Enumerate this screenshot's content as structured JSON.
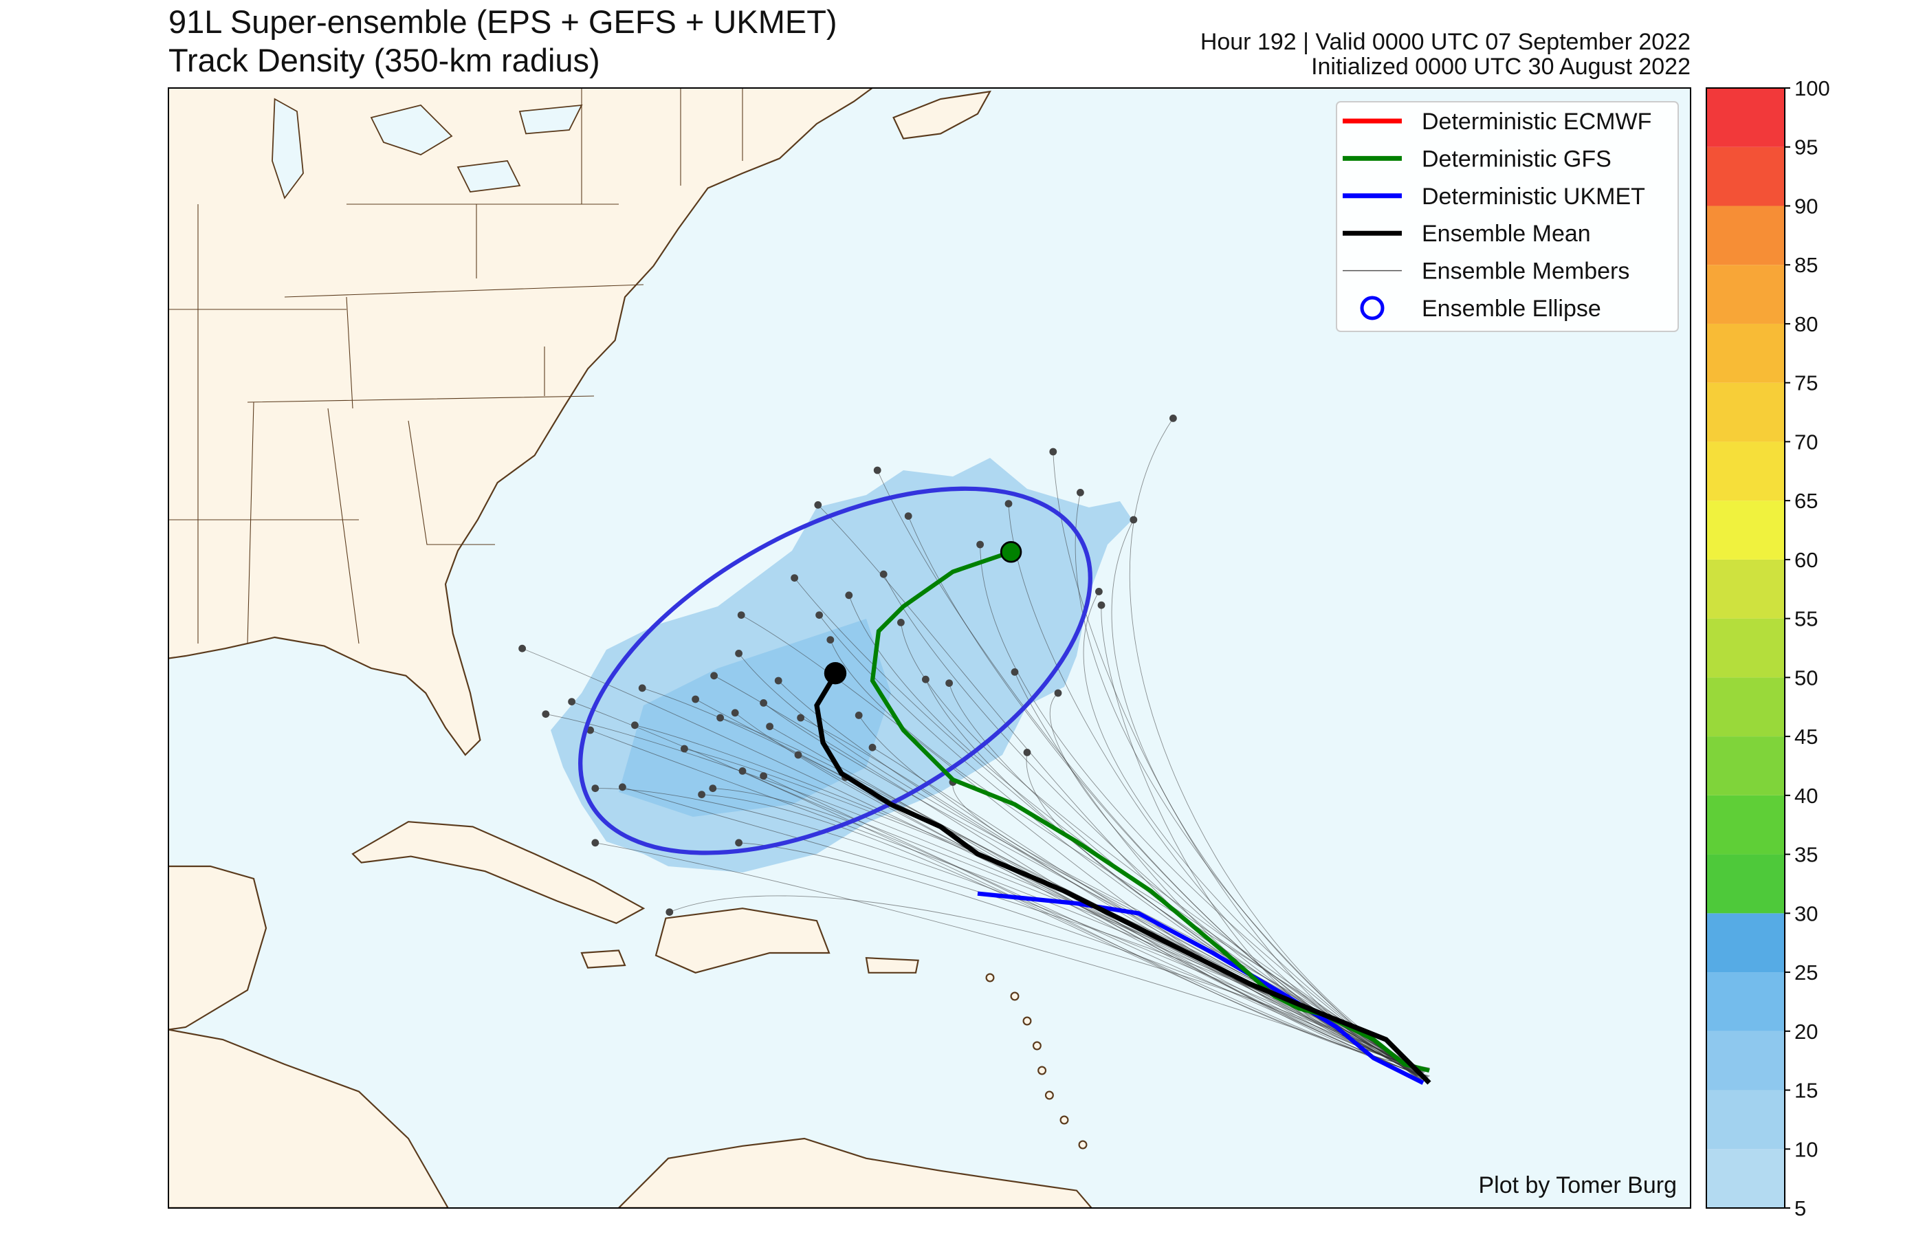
{
  "header": {
    "title": "91L Super-ensemble (EPS + GEFS + UKMET)",
    "subtitle": "Track Density (350-km radius)",
    "valid": "Hour 192 | Valid 0000 UTC 07 September 2022",
    "initialized": "Initialized 0000 UTC 30 August 2022"
  },
  "legend": [
    {
      "label": "Deterministic ECMWF",
      "color": "#ff0000"
    },
    {
      "label": "Deterministic GFS",
      "color": "#008000"
    },
    {
      "label": "Deterministic UKMET",
      "color": "#0000ff"
    },
    {
      "label": "Ensemble Mean",
      "color": "#000000"
    },
    {
      "label": "Ensemble Members",
      "color": "#555555"
    },
    {
      "label": "Ensemble Ellipse",
      "color": "#0000ff"
    }
  ],
  "colorbar": {
    "range": [
      5,
      100
    ],
    "ticks": [
      5,
      10,
      15,
      20,
      25,
      30,
      35,
      40,
      45,
      50,
      55,
      60,
      65,
      70,
      75,
      80,
      85,
      90,
      95,
      100
    ],
    "colors": [
      "#b3daf1",
      "#a2d2ef",
      "#8ec8ee",
      "#74bcec",
      "#56abe5",
      "#4ec93a",
      "#5fcf37",
      "#7fd43a",
      "#99d93a",
      "#b4de3c",
      "#cfe23f",
      "#f0f23e",
      "#f6df3a",
      "#f7ce38",
      "#f8bb36",
      "#f8a637",
      "#f68e36",
      "#f35236",
      "#f2393a"
    ]
  },
  "credit": "Plot by Tomer Burg"
}
